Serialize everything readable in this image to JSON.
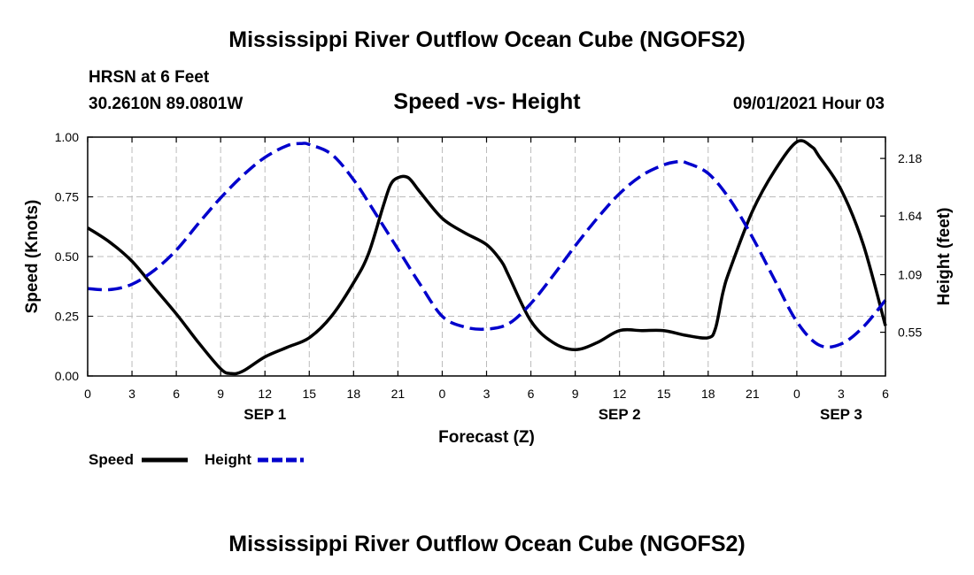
{
  "header": {
    "title": "Mississippi River Outflow Ocean Cube (NGOFS2)",
    "station": "HRSN at 6 Feet",
    "location": "30.2610N  89.0801W",
    "subtitle": "Speed -vs- Height",
    "datetime": "09/01/2021 Hour 03"
  },
  "footer": {
    "title": "Mississippi River Outflow Ocean Cube (NGOFS2)"
  },
  "colors": {
    "speed": "#000000",
    "height": "#0000cc",
    "grid": "#bbbbbb"
  },
  "chart_data": {
    "type": "line",
    "title": "Speed -vs- Height",
    "xlabel": "Forecast (Z)",
    "ylabel": "Speed (Knots)",
    "y2label": "Height (feet)",
    "xlim": [
      0,
      54
    ],
    "ylim": [
      0,
      1
    ],
    "y2lim": [
      0.14,
      2.38
    ],
    "x_ticks": [
      {
        "h": 0,
        "label": "0"
      },
      {
        "h": 3,
        "label": "3"
      },
      {
        "h": 6,
        "label": "6"
      },
      {
        "h": 9,
        "label": "9"
      },
      {
        "h": 12,
        "label": "12"
      },
      {
        "h": 15,
        "label": "15"
      },
      {
        "h": 18,
        "label": "18"
      },
      {
        "h": 21,
        "label": "21"
      },
      {
        "h": 24,
        "label": "0"
      },
      {
        "h": 27,
        "label": "3"
      },
      {
        "h": 30,
        "label": "6"
      },
      {
        "h": 33,
        "label": "9"
      },
      {
        "h": 36,
        "label": "12"
      },
      {
        "h": 39,
        "label": "15"
      },
      {
        "h": 42,
        "label": "18"
      },
      {
        "h": 45,
        "label": "21"
      },
      {
        "h": 48,
        "label": "0"
      },
      {
        "h": 51,
        "label": "3"
      },
      {
        "h": 54,
        "label": "6"
      }
    ],
    "day_labels": [
      {
        "h": 12,
        "label": "SEP 1"
      },
      {
        "h": 36,
        "label": "SEP 2"
      },
      {
        "h": 51,
        "label": "SEP 3"
      }
    ],
    "y_ticks": [
      {
        "v": 0,
        "label": "0.00"
      },
      {
        "v": 0.25,
        "label": "0.25"
      },
      {
        "v": 0.5,
        "label": "0.50"
      },
      {
        "v": 0.75,
        "label": "0.75"
      },
      {
        "v": 1.0,
        "label": "1.00"
      }
    ],
    "y2_ticks": [
      {
        "v": 0.55,
        "label": "0.55"
      },
      {
        "v": 1.09,
        "label": "1.09"
      },
      {
        "v": 1.64,
        "label": "1.64"
      },
      {
        "v": 2.18,
        "label": "2.18"
      }
    ],
    "series": [
      {
        "name": "Speed",
        "axis": "left",
        "style": "solid",
        "color": "#000000",
        "x": [
          0,
          1.5,
          3,
          4.5,
          6,
          7.5,
          9,
          9.7,
          10.5,
          12,
          13.5,
          15,
          16.5,
          18,
          19,
          20,
          20.5,
          21,
          21.7,
          22.5,
          24,
          25.5,
          27,
          28,
          28.5,
          30,
          31.5,
          33,
          34.5,
          36,
          37.5,
          39,
          40.5,
          42,
          42.5,
          43,
          43.5,
          45,
          46.5,
          48,
          49,
          49.5,
          51,
          52.5,
          54
        ],
        "y": [
          0.62,
          0.56,
          0.48,
          0.37,
          0.26,
          0.14,
          0.03,
          0.01,
          0.02,
          0.08,
          0.12,
          0.16,
          0.25,
          0.39,
          0.51,
          0.71,
          0.8,
          0.83,
          0.83,
          0.77,
          0.66,
          0.6,
          0.55,
          0.48,
          0.42,
          0.23,
          0.14,
          0.11,
          0.14,
          0.19,
          0.19,
          0.19,
          0.17,
          0.16,
          0.2,
          0.35,
          0.45,
          0.69,
          0.86,
          0.98,
          0.96,
          0.92,
          0.78,
          0.55,
          0.21
        ]
      },
      {
        "name": "Height",
        "axis": "right",
        "style": "dashed",
        "color": "#0000cc",
        "x": [
          0,
          1.5,
          3,
          4.5,
          6,
          7.5,
          9,
          10.5,
          12,
          13.5,
          14.5,
          15,
          16.5,
          18,
          19.5,
          21,
          22.5,
          24,
          25.5,
          27,
          28.5,
          30,
          31.5,
          33,
          34.5,
          36,
          37.5,
          39,
          40,
          40.5,
          42,
          43.5,
          45,
          46.5,
          48,
          49.5,
          51,
          52.5,
          54
        ],
        "y": [
          0.96,
          0.95,
          1.0,
          1.13,
          1.32,
          1.57,
          1.81,
          2.02,
          2.19,
          2.3,
          2.32,
          2.31,
          2.22,
          1.98,
          1.66,
          1.33,
          1.0,
          0.7,
          0.6,
          0.58,
          0.63,
          0.82,
          1.08,
          1.36,
          1.62,
          1.85,
          2.02,
          2.12,
          2.15,
          2.14,
          2.04,
          1.79,
          1.44,
          1.04,
          0.65,
          0.43,
          0.44,
          0.6,
          0.85
        ]
      }
    ]
  },
  "legend": {
    "speed_label": "Speed",
    "height_label": "Height"
  }
}
